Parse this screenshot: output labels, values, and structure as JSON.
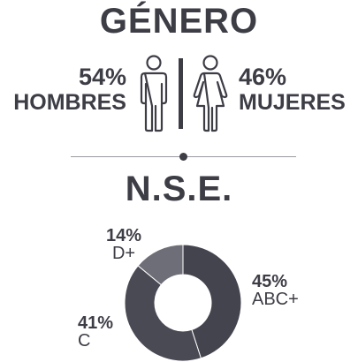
{
  "gender": {
    "title": "GÉNERO",
    "male": {
      "percent": "54%",
      "label": "HOMBRES"
    },
    "female": {
      "percent": "46%",
      "label": "MUJERES"
    }
  },
  "nse": {
    "title": "N.S.E."
  },
  "chart_data": {
    "type": "pie",
    "categories": [
      "ABC+",
      "C",
      "D+"
    ],
    "values": [
      45,
      41,
      14
    ],
    "labels": [
      "45%",
      "41%",
      "14%"
    ],
    "colors": [
      "#44444f",
      "#4a4a55",
      "#6e6e78"
    ],
    "title": ""
  }
}
